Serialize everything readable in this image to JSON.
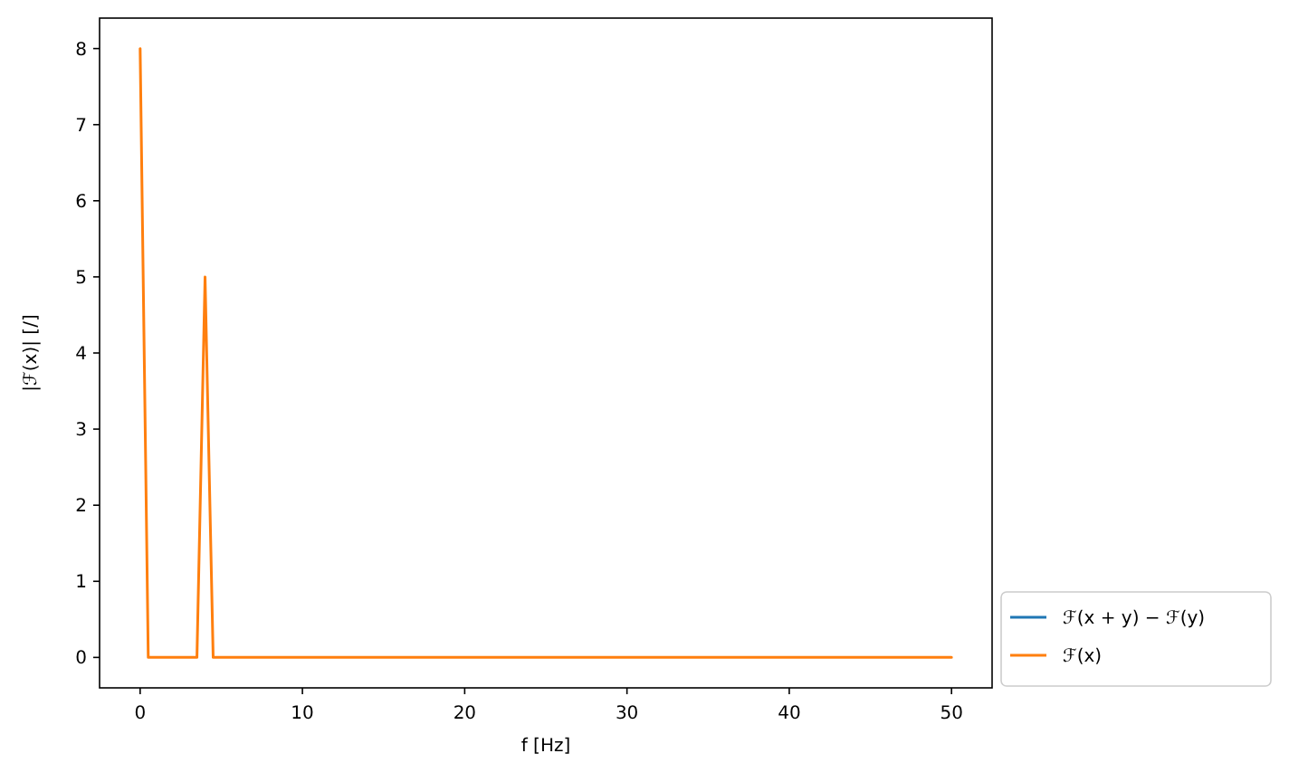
{
  "chart_data": {
    "type": "line",
    "xlabel": "f [Hz]",
    "ylabel": "|ℱ(x)| [/]",
    "xlim": [
      -2.5,
      52.5
    ],
    "ylim": [
      -0.4,
      8.4
    ],
    "xticks": [
      0,
      10,
      20,
      30,
      40,
      50
    ],
    "yticks": [
      0,
      1,
      2,
      3,
      4,
      5,
      6,
      7,
      8
    ],
    "legend": "bottom right",
    "series": [
      {
        "name": "ℱ(x + y) − ℱ(y)",
        "color": "#1f77b4"
      },
      {
        "name": "ℱ(x)",
        "color": "#ff7f0e",
        "x": [
          0,
          0.5,
          3.5,
          4,
          4.5,
          50
        ],
        "values": [
          8,
          0,
          0,
          5,
          0,
          0
        ]
      }
    ]
  }
}
